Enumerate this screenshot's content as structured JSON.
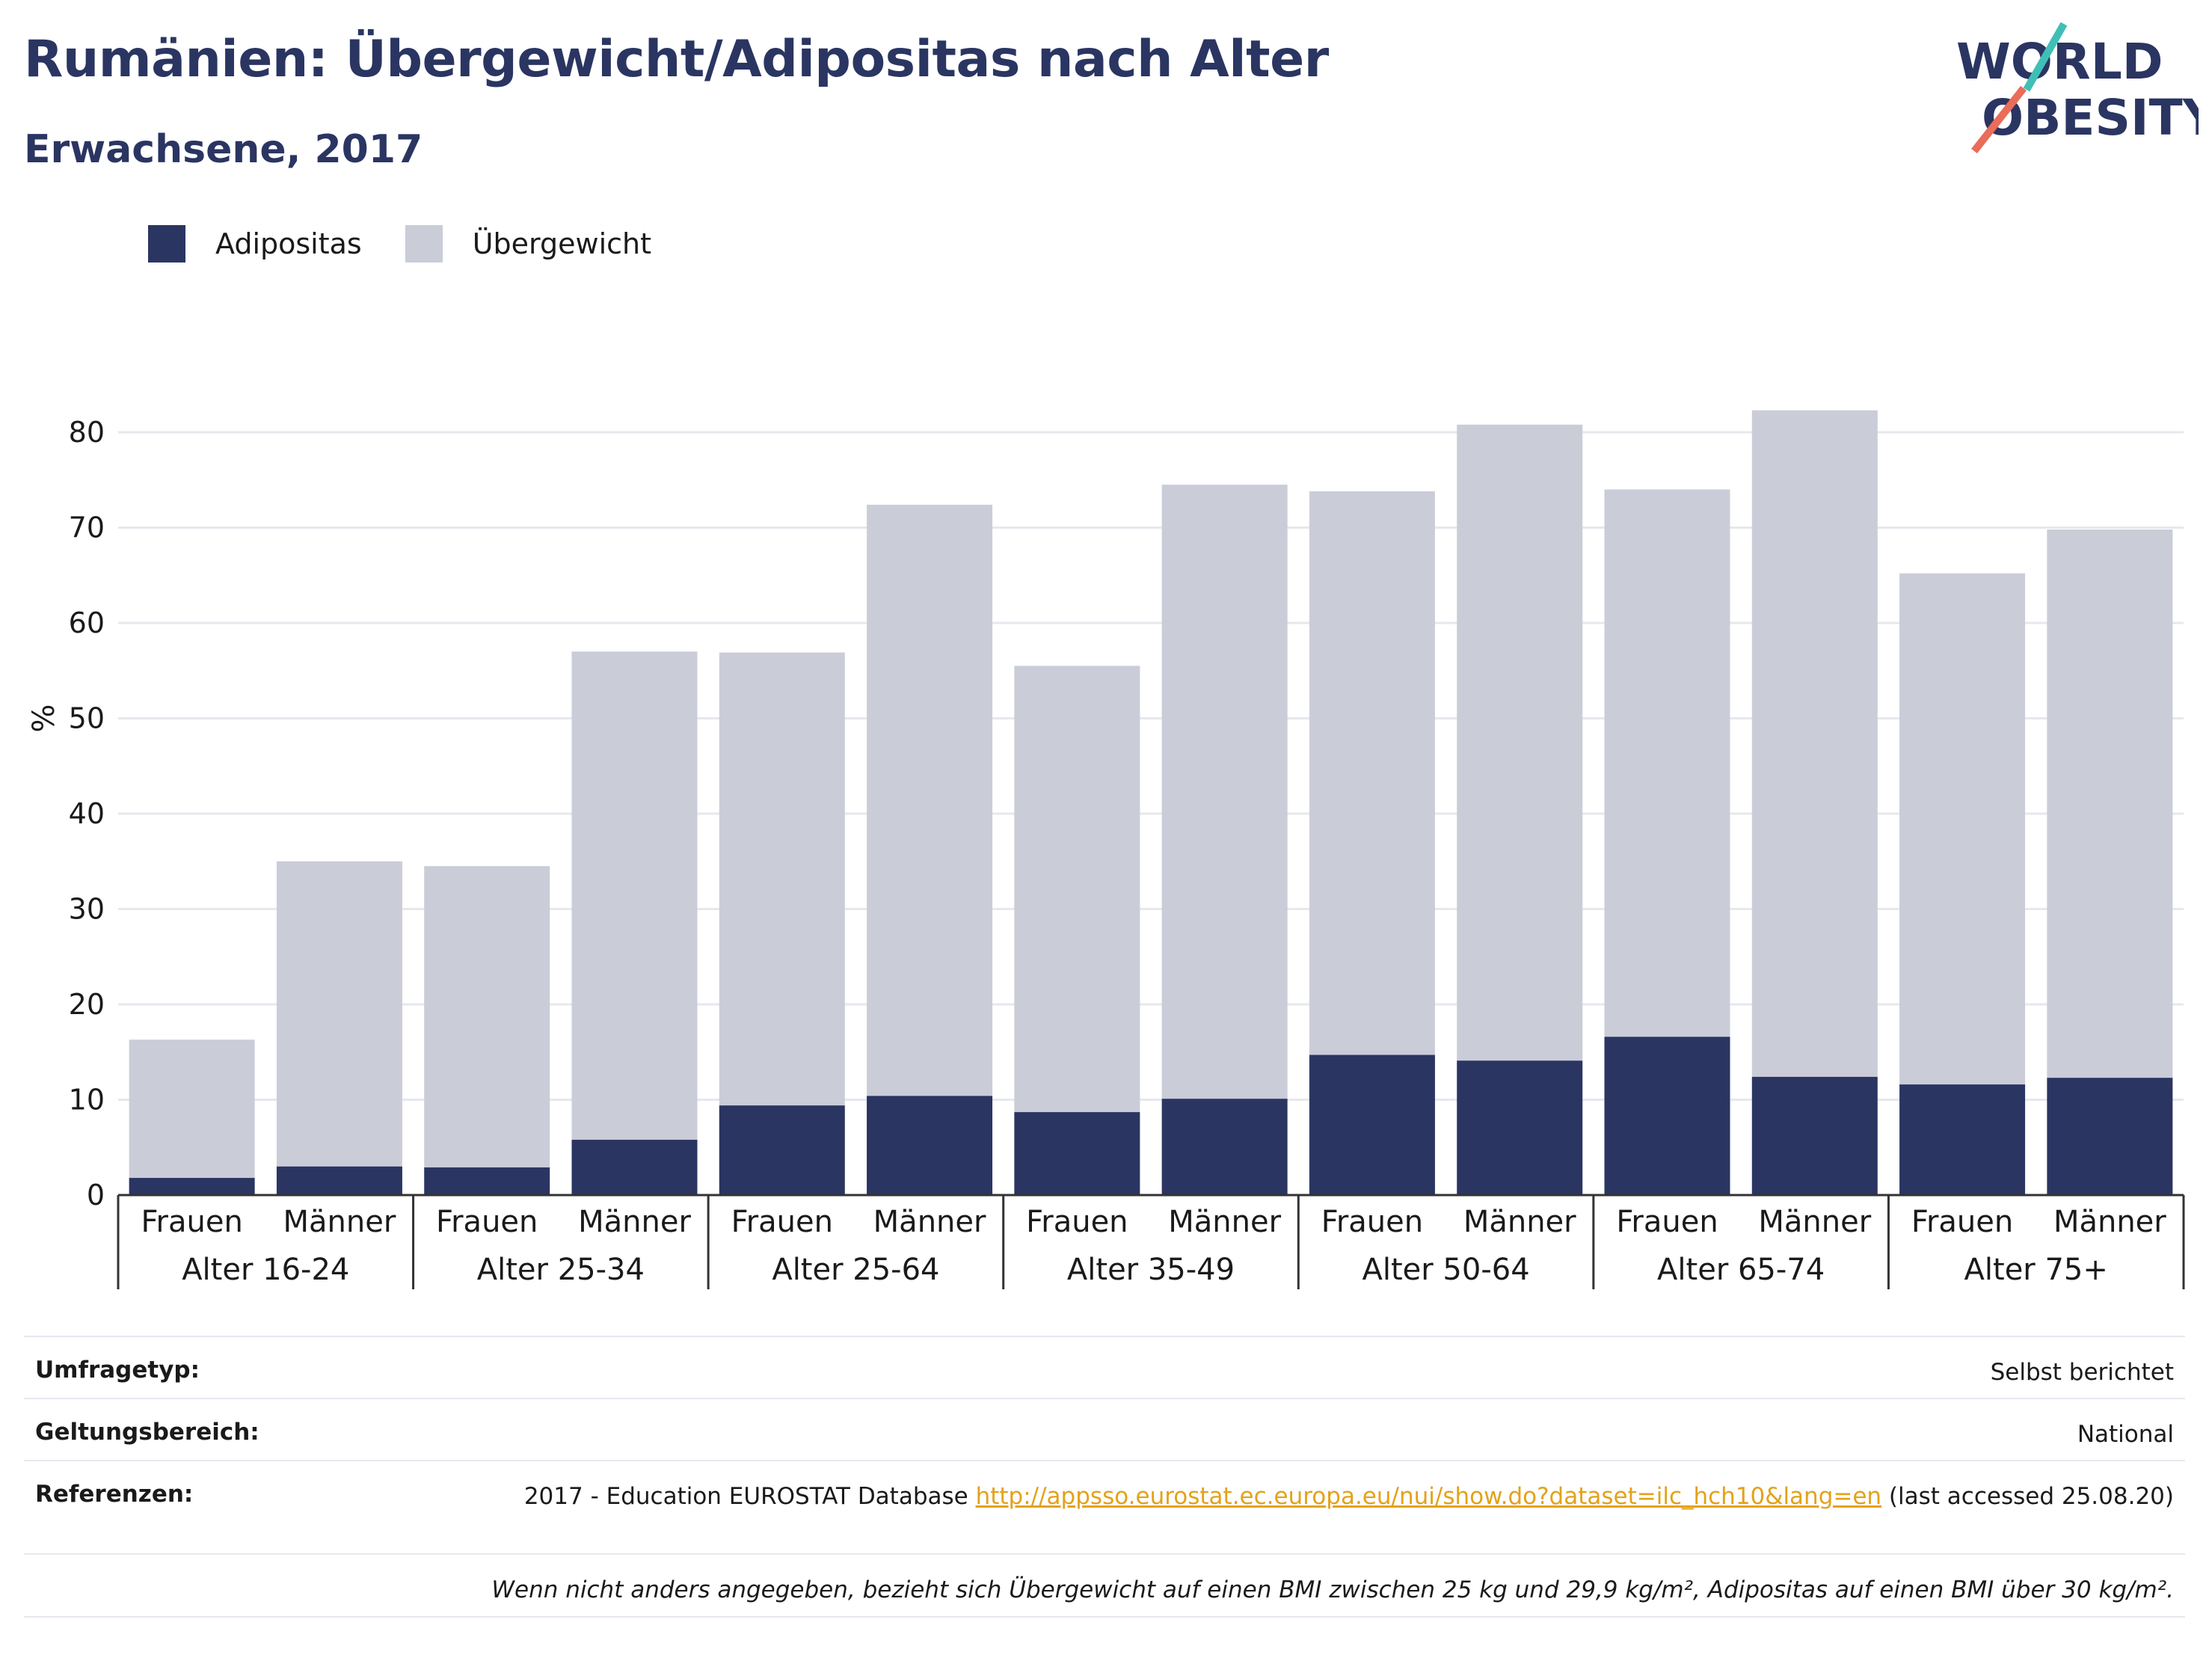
{
  "header": {
    "title": "Rumänien: Übergewicht/Adipositas nach Alter",
    "subtitle": "Erwachsene, 2017"
  },
  "logo": {
    "line1": "WORLD",
    "line2": "OBESITY"
  },
  "colors": {
    "adipositas": "#2a3562",
    "uebergewicht": "#caccd8",
    "title": "#2a3562",
    "link": "#e3a21a",
    "logo_teal": "#3fbfb6",
    "logo_coral": "#ea6c5a"
  },
  "chart_data": {
    "type": "bar",
    "stacked": true,
    "ylabel": "%",
    "ylim": [
      0,
      85
    ],
    "yticks": [
      0,
      10,
      20,
      30,
      40,
      50,
      60,
      70,
      80
    ],
    "grid": true,
    "legend_position": "top-left",
    "groups": [
      "Alter 16-24",
      "Alter 25-34",
      "Alter 25-64",
      "Alter 35-49",
      "Alter 50-64",
      "Alter 65-74",
      "Alter 75+"
    ],
    "subcategories": [
      "Frauen",
      "Männer"
    ],
    "series": [
      {
        "name": "Adipositas",
        "values": [
          1.8,
          3.0,
          2.9,
          5.8,
          9.4,
          10.4,
          8.7,
          10.1,
          14.7,
          14.1,
          16.6,
          12.4,
          11.6,
          12.3
        ]
      },
      {
        "name": "Übergewicht",
        "values": [
          14.5,
          32.0,
          31.6,
          51.2,
          47.5,
          62.0,
          46.8,
          64.4,
          59.1,
          66.7,
          57.4,
          69.9,
          53.6,
          57.5
        ]
      }
    ]
  },
  "meta": {
    "survey_label": "Umfragetyp:",
    "survey_value": "Selbst berichtet",
    "scope_label": "Geltungsbereich:",
    "scope_value": "National",
    "ref_label": "Referenzen:",
    "ref_prefix": "2017 - Education EUROSTAT Database ",
    "ref_link": "http://appsso.eurostat.ec.europa.eu/nui/show.do?dataset=ilc_hch10&lang=en",
    "ref_suffix": " (last accessed 25.08.20)",
    "note": "Wenn nicht anders angegeben, bezieht sich Übergewicht auf einen BMI zwischen 25 kg und 29,9 kg/m², Adipositas auf einen BMI über 30 kg/m²."
  }
}
